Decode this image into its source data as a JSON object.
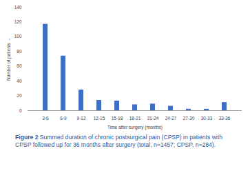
{
  "chart_data": {
    "type": "bar",
    "figure_label": "Figure 2",
    "caption": "Summed duration of chronic postsurgical pain (CPSP) in patients with CPSP followed up for 36 months after surgery (total, n=1457; CPSP, n=284).",
    "x_label": "Time after surgery (months)",
    "y_label": "Number of patients",
    "categories": [
      "3-6",
      "6-9",
      "9-12",
      "12-15",
      "15-18",
      "18-21",
      "21-24",
      "24-27",
      "27-30",
      "30-33",
      "33-36"
    ],
    "values": [
      117,
      74,
      28,
      14,
      13,
      8,
      9,
      6,
      2,
      2,
      11
    ],
    "color": "#3f6fc4",
    "ylim": [
      0,
      140
    ],
    "yticks": [
      0,
      20,
      40,
      60,
      80,
      100,
      120,
      140
    ],
    "grid": false
  }
}
